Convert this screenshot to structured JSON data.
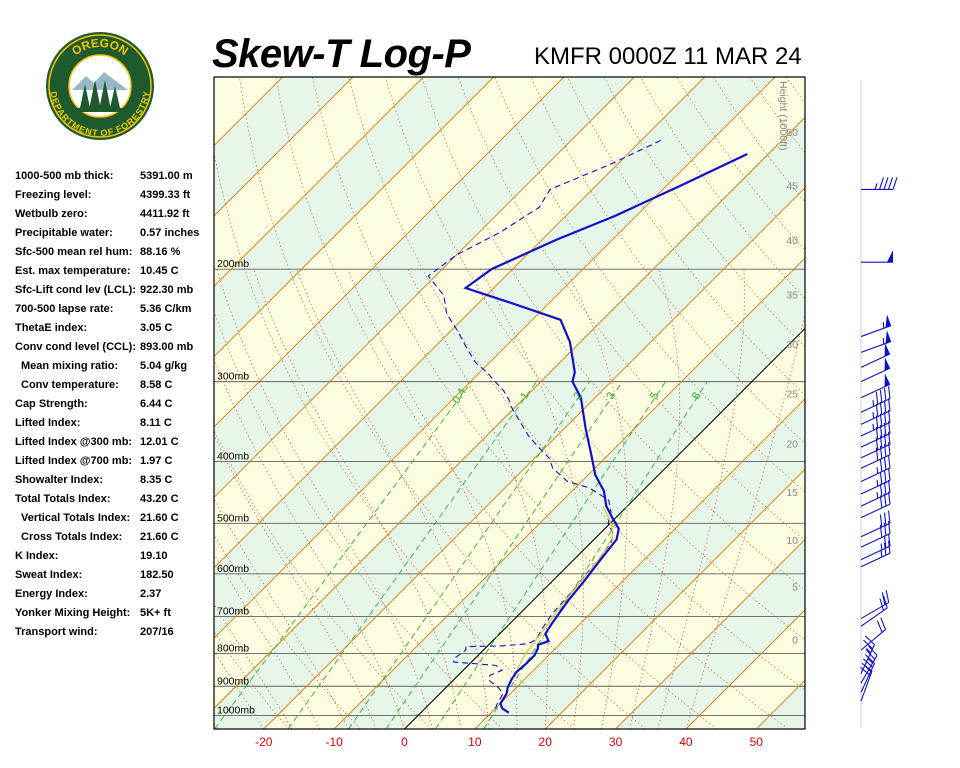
{
  "header": {
    "title": "Skew-T Log-P",
    "station_time": "KMFR 0000Z 11 MAR 24"
  },
  "logo": {
    "top_text": "OREGON",
    "bottom_text": "DEPARTMENT OF FORESTRY",
    "ring_color": "#1e5a2e",
    "text_color": "#f2c500",
    "icon": "oregon-department-of-forestry-seal"
  },
  "indices": [
    {
      "label": "1000-500 mb thick:",
      "value": "5391.00 m",
      "indent": false
    },
    {
      "label": "Freezing level:",
      "value": "4399.33 ft",
      "indent": false
    },
    {
      "label": "Wetbulb zero:",
      "value": "4411.92 ft",
      "indent": false
    },
    {
      "label": "Precipitable water:",
      "value": "0.57 inches",
      "indent": false
    },
    {
      "label": "Sfc-500 mean rel hum:",
      "value": "88.16 %",
      "indent": false
    },
    {
      "label": "Est. max temperature:",
      "value": "10.45 C",
      "indent": false
    },
    {
      "label": "Sfc-Lift cond lev (LCL):",
      "value": "922.30 mb",
      "indent": false
    },
    {
      "label": "700-500 lapse rate:",
      "value": "5.36 C/km",
      "indent": false
    },
    {
      "label": "ThetaE index:",
      "value": "3.05 C",
      "indent": false
    },
    {
      "label": "Conv cond level (CCL):",
      "value": "893.00 mb",
      "indent": false
    },
    {
      "label": "Mean mixing ratio:",
      "value": "5.04 g/kg",
      "indent": true
    },
    {
      "label": "Conv temperature:",
      "value": "8.58 C",
      "indent": true
    },
    {
      "label": "Cap Strength:",
      "value": "6.44 C",
      "indent": false
    },
    {
      "label": "Lifted Index:",
      "value": "8.11 C",
      "indent": false
    },
    {
      "label": "Lifted Index @300 mb:",
      "value": "12.01 C",
      "indent": false
    },
    {
      "label": "Lifted Index @700 mb:",
      "value": "1.97 C",
      "indent": false
    },
    {
      "label": "Showalter Index:",
      "value": "8.35 C",
      "indent": false
    },
    {
      "label": "Total Totals Index:",
      "value": "43.20 C",
      "indent": false
    },
    {
      "label": "Vertical Totals Index:",
      "value": "21.60 C",
      "indent": true
    },
    {
      "label": "Cross Totals Index:",
      "value": "21.60 C",
      "indent": true
    },
    {
      "label": "K Index:",
      "value": "19.10",
      "indent": false
    },
    {
      "label": "Sweat Index:",
      "value": "182.50",
      "indent": false
    },
    {
      "label": "Energy Index:",
      "value": "2.37",
      "indent": false
    },
    {
      "label": "Yonker Mixing Height:",
      "value": "5K+ ft",
      "indent": false
    },
    {
      "label": "Transport wind:",
      "value": "207/16",
      "indent": false
    }
  ],
  "chart_data": {
    "type": "line",
    "x_ticks": [
      -20,
      -10,
      0,
      10,
      20,
      30,
      40,
      50
    ],
    "xlim": [
      -29,
      55
    ],
    "ylim_mb": [
      1050,
      100
    ],
    "y_scale": "log",
    "pressure_levels": [
      200,
      300,
      400,
      500,
      600,
      700,
      800,
      900,
      1000
    ],
    "pressure_labels": [
      "200mb",
      "300mb",
      "400mb",
      "500mb",
      "600mb",
      "700mb",
      "800mb",
      "900mb",
      "1000mb"
    ],
    "height_axis_title": "Height (1000ft)",
    "height_levels": [
      {
        "label": "50",
        "mb": 122
      },
      {
        "label": "45",
        "mb": 148
      },
      {
        "label": "40",
        "mb": 180
      },
      {
        "label": "35",
        "mb": 219
      },
      {
        "label": "30",
        "mb": 262
      },
      {
        "label": "25",
        "mb": 313
      },
      {
        "label": "20",
        "mb": 375
      },
      {
        "label": "15",
        "mb": 447
      },
      {
        "label": "10",
        "mb": 531
      },
      {
        "label": "5",
        "mb": 628
      },
      {
        "label": "0",
        "mb": 760
      }
    ],
    "mixing_ratio_labels": [
      "0.4",
      "1",
      "2",
      "3",
      "5",
      "8"
    ],
    "mixing_ratio_values": [
      0.4,
      1,
      2,
      3,
      5,
      8
    ],
    "series": [
      {
        "color": "#1010cc",
        "style": "solid",
        "points": [
          [
            12.5,
            990
          ],
          [
            11,
            975
          ],
          [
            10,
            958
          ],
          [
            9.5,
            925
          ],
          [
            8.8,
            905
          ],
          [
            8.2,
            880
          ],
          [
            7.8,
            855
          ],
          [
            8,
            830
          ],
          [
            8,
            805
          ],
          [
            7.5,
            785
          ],
          [
            7,
            775
          ],
          [
            8,
            765
          ],
          [
            6.5,
            745
          ],
          [
            6,
            720
          ],
          [
            5.5,
            690
          ],
          [
            5,
            660
          ],
          [
            4.5,
            615
          ],
          [
            3.8,
            570
          ],
          [
            3.2,
            530
          ],
          [
            2,
            510
          ],
          [
            -0.5,
            490
          ],
          [
            -3,
            470
          ],
          [
            -5.5,
            445
          ],
          [
            -9,
            420
          ],
          [
            -12.5,
            390
          ],
          [
            -17,
            355
          ],
          [
            -22,
            318
          ],
          [
            -25.5,
            300
          ],
          [
            -26.5,
            290
          ],
          [
            -31.5,
            260
          ],
          [
            -36,
            240
          ],
          [
            -46,
            225
          ],
          [
            -54,
            214
          ],
          [
            -53,
            200
          ],
          [
            -48,
            180
          ],
          [
            -43,
            165
          ],
          [
            -38,
            148
          ],
          [
            -33,
            132
          ]
        ]
      },
      {
        "color": "#1010cc",
        "style": "dashed",
        "points": [
          [
            10,
            975
          ],
          [
            9.5,
            955
          ],
          [
            9,
            925
          ],
          [
            7.5,
            905
          ],
          [
            5,
            880
          ],
          [
            4.5,
            865
          ],
          [
            5.5,
            850
          ],
          [
            4,
            835
          ],
          [
            1,
            830
          ],
          [
            -2.5,
            825
          ],
          [
            -3,
            815
          ],
          [
            -2.5,
            790
          ],
          [
            -3,
            780
          ],
          [
            2,
            778
          ],
          [
            5.5,
            772
          ],
          [
            6,
            760
          ],
          [
            5.5,
            740
          ],
          [
            5,
            715
          ],
          [
            4.6,
            690
          ],
          [
            4.4,
            660
          ],
          [
            4.2,
            630
          ],
          [
            3.8,
            600
          ],
          [
            3.5,
            570
          ],
          [
            2.8,
            535
          ],
          [
            2,
            520
          ],
          [
            -0.3,
            500
          ],
          [
            -1.5,
            480
          ],
          [
            -3.5,
            460
          ],
          [
            -8,
            440
          ],
          [
            -12,
            430
          ],
          [
            -16,
            410
          ],
          [
            -18,
            395
          ],
          [
            -21,
            380
          ],
          [
            -24,
            365
          ],
          [
            -27,
            348
          ],
          [
            -30,
            332
          ],
          [
            -32,
            320
          ],
          [
            -34,
            310
          ],
          [
            -36.5,
            300
          ],
          [
            -39,
            290
          ],
          [
            -42,
            280
          ],
          [
            -45.5,
            265
          ],
          [
            -49,
            250
          ],
          [
            -53,
            235
          ],
          [
            -56,
            220
          ],
          [
            -61,
            205
          ],
          [
            -60,
            190
          ],
          [
            -57,
            175
          ],
          [
            -55,
            160
          ],
          [
            -56,
            150
          ],
          [
            -51,
            137
          ],
          [
            -47,
            125
          ]
        ]
      },
      {
        "color": "#e0c040",
        "style": "solid",
        "points": [
          [
            7.5,
            845
          ],
          [
            6.5,
            800
          ],
          [
            6,
            760
          ],
          [
            5.5,
            720
          ],
          [
            5,
            690
          ],
          [
            4.6,
            660
          ],
          [
            4.2,
            625
          ],
          [
            3.8,
            590
          ],
          [
            3.2,
            555
          ],
          [
            2.4,
            528
          ],
          [
            0.9,
            508
          ],
          [
            -1,
            490
          ],
          [
            -3.5,
            470
          ]
        ]
      }
    ],
    "wind_barbs": [
      {
        "mb": 150,
        "dir": 270,
        "speed": 45
      },
      {
        "mb": 195,
        "dir": 270,
        "speed": 50
      },
      {
        "mb": 255,
        "dir": 250,
        "speed": 55
      },
      {
        "mb": 270,
        "dir": 250,
        "speed": 55
      },
      {
        "mb": 285,
        "dir": 245,
        "speed": 50
      },
      {
        "mb": 300,
        "dir": 245,
        "speed": 50
      },
      {
        "mb": 318,
        "dir": 245,
        "speed": 50
      },
      {
        "mb": 335,
        "dir": 245,
        "speed": 45
      },
      {
        "mb": 350,
        "dir": 245,
        "speed": 45
      },
      {
        "mb": 365,
        "dir": 245,
        "speed": 45
      },
      {
        "mb": 380,
        "dir": 245,
        "speed": 40
      },
      {
        "mb": 395,
        "dir": 245,
        "speed": 40
      },
      {
        "mb": 410,
        "dir": 245,
        "speed": 40
      },
      {
        "mb": 430,
        "dir": 245,
        "speed": 35
      },
      {
        "mb": 450,
        "dir": 245,
        "speed": 35
      },
      {
        "mb": 470,
        "dir": 245,
        "speed": 35
      },
      {
        "mb": 490,
        "dir": 245,
        "speed": 30
      },
      {
        "mb": 525,
        "dir": 245,
        "speed": 30
      },
      {
        "mb": 545,
        "dir": 245,
        "speed": 30
      },
      {
        "mb": 570,
        "dir": 245,
        "speed": 25
      },
      {
        "mb": 585,
        "dir": 245,
        "speed": 25
      },
      {
        "mb": 705,
        "dir": 240,
        "speed": 20
      },
      {
        "mb": 725,
        "dir": 235,
        "speed": 20
      },
      {
        "mb": 790,
        "dir": 230,
        "speed": 20
      },
      {
        "mb": 860,
        "dir": 205,
        "speed": 25
      },
      {
        "mb": 890,
        "dir": 210,
        "speed": 25
      },
      {
        "mb": 920,
        "dir": 205,
        "speed": 25
      },
      {
        "mb": 950,
        "dir": 200,
        "speed": 20
      }
    ],
    "colors": {
      "isotherm": "#e07800",
      "dry_adiabat": "#b85010",
      "moist_adiabat": "#d04040",
      "mixing_ratio": "#30b030",
      "isobar": "#606060",
      "freezing_line": "#000000",
      "band_cold": "#e6f7ea",
      "band_warm": "#fcfde1",
      "tick_label": "#dd0000",
      "temperature": "#1010cc",
      "parcel": "#e0c040",
      "wind": "#1010cc"
    }
  }
}
